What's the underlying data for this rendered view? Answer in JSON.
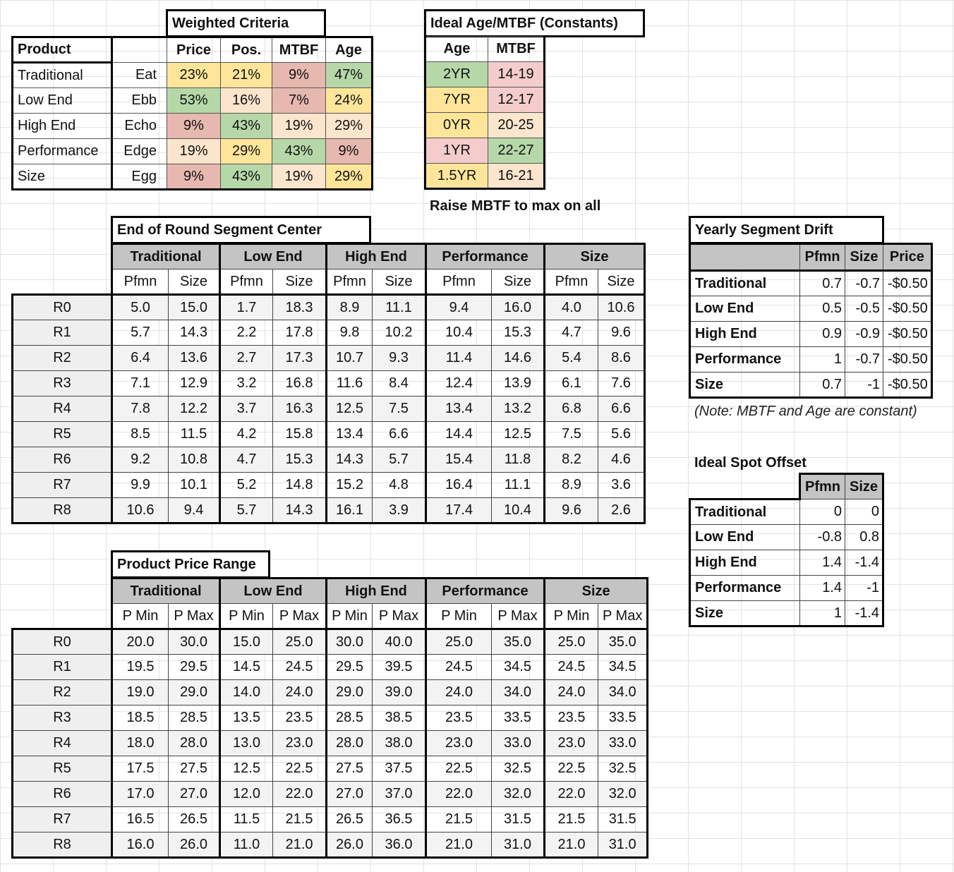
{
  "weighted_criteria": {
    "title": "Weighted Criteria",
    "product_label": "Product",
    "headers": [
      "Price",
      "Pos.",
      "MTBF",
      "Age"
    ],
    "rows": [
      {
        "segment": "Traditional",
        "product": "Eat",
        "values": [
          "23%",
          "21%",
          "9%",
          "47%"
        ],
        "colors": [
          "yellow",
          "yellow",
          "red",
          "green"
        ]
      },
      {
        "segment": "Low End",
        "product": "Ebb",
        "values": [
          "53%",
          "16%",
          "7%",
          "24%"
        ],
        "colors": [
          "green",
          "peach",
          "red",
          "yellow"
        ]
      },
      {
        "segment": "High End",
        "product": "Echo",
        "values": [
          "9%",
          "43%",
          "19%",
          "29%"
        ],
        "colors": [
          "red",
          "green",
          "peach",
          "peach"
        ]
      },
      {
        "segment": "Performance",
        "product": "Edge",
        "values": [
          "19%",
          "29%",
          "43%",
          "9%"
        ],
        "colors": [
          "peach",
          "yellow",
          "green",
          "red"
        ]
      },
      {
        "segment": "Size",
        "product": "Egg",
        "values": [
          "9%",
          "43%",
          "19%",
          "29%"
        ],
        "colors": [
          "red",
          "green",
          "peach",
          "yellow"
        ]
      }
    ]
  },
  "ideal_age_mtbf": {
    "title": "Ideal Age/MTBF (Constants)",
    "headers": [
      "Age",
      "MTBF"
    ],
    "rows": [
      {
        "age": "2YR",
        "mtbf": "14-19",
        "age_color": "green",
        "mtbf_color": "pink"
      },
      {
        "age": "7YR",
        "mtbf": "12-17",
        "age_color": "yellow",
        "mtbf_color": "pink"
      },
      {
        "age": "0YR",
        "mtbf": "20-25",
        "age_color": "yellow",
        "mtbf_color": "peach"
      },
      {
        "age": "1YR",
        "mtbf": "22-27",
        "age_color": "pink",
        "mtbf_color": "green"
      },
      {
        "age": "1.5YR",
        "mtbf": "16-21",
        "age_color": "yellow",
        "mtbf_color": "peach"
      }
    ],
    "note": "Raise MBTF to max on all"
  },
  "segment_center": {
    "title": "End of Round Segment Center",
    "segments": [
      "Traditional",
      "Low End",
      "High End",
      "Performance",
      "Size"
    ],
    "sub_headers": [
      "Pfmn",
      "Size"
    ],
    "rows": [
      {
        "round": "R0",
        "values": [
          "5.0",
          "15.0",
          "1.7",
          "18.3",
          "8.9",
          "11.1",
          "9.4",
          "16.0",
          "4.0",
          "10.6"
        ]
      },
      {
        "round": "R1",
        "values": [
          "5.7",
          "14.3",
          "2.2",
          "17.8",
          "9.8",
          "10.2",
          "10.4",
          "15.3",
          "4.7",
          "9.6"
        ]
      },
      {
        "round": "R2",
        "values": [
          "6.4",
          "13.6",
          "2.7",
          "17.3",
          "10.7",
          "9.3",
          "11.4",
          "14.6",
          "5.4",
          "8.6"
        ]
      },
      {
        "round": "R3",
        "values": [
          "7.1",
          "12.9",
          "3.2",
          "16.8",
          "11.6",
          "8.4",
          "12.4",
          "13.9",
          "6.1",
          "7.6"
        ]
      },
      {
        "round": "R4",
        "values": [
          "7.8",
          "12.2",
          "3.7",
          "16.3",
          "12.5",
          "7.5",
          "13.4",
          "13.2",
          "6.8",
          "6.6"
        ]
      },
      {
        "round": "R5",
        "values": [
          "8.5",
          "11.5",
          "4.2",
          "15.8",
          "13.4",
          "6.6",
          "14.4",
          "12.5",
          "7.5",
          "5.6"
        ]
      },
      {
        "round": "R6",
        "values": [
          "9.2",
          "10.8",
          "4.7",
          "15.3",
          "14.3",
          "5.7",
          "15.4",
          "11.8",
          "8.2",
          "4.6"
        ]
      },
      {
        "round": "R7",
        "values": [
          "9.9",
          "10.1",
          "5.2",
          "14.8",
          "15.2",
          "4.8",
          "16.4",
          "11.1",
          "8.9",
          "3.6"
        ]
      },
      {
        "round": "R8",
        "values": [
          "10.6",
          "9.4",
          "5.7",
          "14.3",
          "16.1",
          "3.9",
          "17.4",
          "10.4",
          "9.6",
          "2.6"
        ]
      }
    ]
  },
  "price_range": {
    "title": "Product Price Range",
    "segments": [
      "Traditional",
      "Low End",
      "High End",
      "Performance",
      "Size"
    ],
    "sub_headers": [
      "P Min",
      "P Max"
    ],
    "rows": [
      {
        "round": "R0",
        "values": [
          "20.0",
          "30.0",
          "15.0",
          "25.0",
          "30.0",
          "40.0",
          "25.0",
          "35.0",
          "25.0",
          "35.0"
        ]
      },
      {
        "round": "R1",
        "values": [
          "19.5",
          "29.5",
          "14.5",
          "24.5",
          "29.5",
          "39.5",
          "24.5",
          "34.5",
          "24.5",
          "34.5"
        ]
      },
      {
        "round": "R2",
        "values": [
          "19.0",
          "29.0",
          "14.0",
          "24.0",
          "29.0",
          "39.0",
          "24.0",
          "34.0",
          "24.0",
          "34.0"
        ]
      },
      {
        "round": "R3",
        "values": [
          "18.5",
          "28.5",
          "13.5",
          "23.5",
          "28.5",
          "38.5",
          "23.5",
          "33.5",
          "23.5",
          "33.5"
        ]
      },
      {
        "round": "R4",
        "values": [
          "18.0",
          "28.0",
          "13.0",
          "23.0",
          "28.0",
          "38.0",
          "23.0",
          "33.0",
          "23.0",
          "33.0"
        ]
      },
      {
        "round": "R5",
        "values": [
          "17.5",
          "27.5",
          "12.5",
          "22.5",
          "27.5",
          "37.5",
          "22.5",
          "32.5",
          "22.5",
          "32.5"
        ]
      },
      {
        "round": "R6",
        "values": [
          "17.0",
          "27.0",
          "12.0",
          "22.0",
          "27.0",
          "37.0",
          "22.0",
          "32.0",
          "22.0",
          "32.0"
        ]
      },
      {
        "round": "R7",
        "values": [
          "16.5",
          "26.5",
          "11.5",
          "21.5",
          "26.5",
          "36.5",
          "21.5",
          "31.5",
          "21.5",
          "31.5"
        ]
      },
      {
        "round": "R8",
        "values": [
          "16.0",
          "26.0",
          "11.0",
          "21.0",
          "26.0",
          "36.0",
          "21.0",
          "31.0",
          "21.0",
          "31.0"
        ]
      }
    ]
  },
  "segment_drift": {
    "title": "Yearly Segment Drift",
    "headers": [
      "Pfmn",
      "Size",
      "Price"
    ],
    "rows": [
      {
        "segment": "Traditional",
        "values": [
          "0.7",
          "-0.7",
          "-$0.50"
        ]
      },
      {
        "segment": "Low End",
        "values": [
          "0.5",
          "-0.5",
          "-$0.50"
        ]
      },
      {
        "segment": "High End",
        "values": [
          "0.9",
          "-0.9",
          "-$0.50"
        ]
      },
      {
        "segment": "Performance",
        "values": [
          "1",
          "-0.7",
          "-$0.50"
        ]
      },
      {
        "segment": "Size",
        "values": [
          "0.7",
          "-1",
          "-$0.50"
        ]
      }
    ],
    "note": "(Note: MBTF and Age are constant)"
  },
  "spot_offset": {
    "title": "Ideal Spot Offset",
    "headers": [
      "Pfmn",
      "Size"
    ],
    "rows": [
      {
        "segment": "Traditional",
        "values": [
          "0",
          "0"
        ]
      },
      {
        "segment": "Low End",
        "values": [
          "-0.8",
          "0.8"
        ]
      },
      {
        "segment": "High End",
        "values": [
          "1.4",
          "-1.4"
        ]
      },
      {
        "segment": "Performance",
        "values": [
          "1.4",
          "-1"
        ]
      },
      {
        "segment": "Size",
        "values": [
          "1",
          "-1.4"
        ]
      }
    ]
  },
  "colors": {
    "green": "#b6d7a8",
    "yellow": "#ffe599",
    "red": "#e6b8af",
    "peach": "#fce5cd",
    "pink": "#f4cccc",
    "header_grey": "#c4c4c4",
    "row_label_grey": "#efefef"
  }
}
